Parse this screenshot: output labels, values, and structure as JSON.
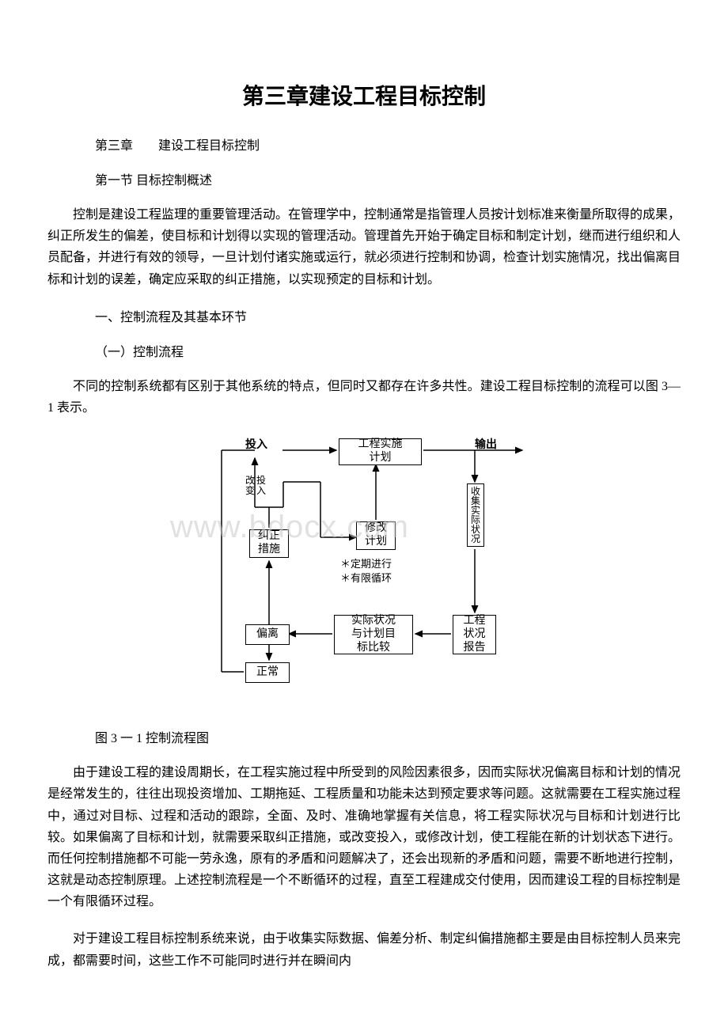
{
  "title": "第三章建设工程目标控制",
  "chapter_line": "第三章　　建设工程目标控制",
  "section_line": "第一节 目标控制概述",
  "para1": "控制是建设工程监理的重要管理活动。在管理学中，控制通常是指管理人员按计划标准来衡量所取得的成果，纠正所发生的偏差，使目标和计划得以实现的管理活动。管理首先开始于确定目标和制定计划，继而进行组织和人员配备，并进行有效的领导，一旦计划付诸实施或运行，就必须进行控制和协调，检查计划实施情况，找出偏离目标和计划的误差，确定应采取的纠正措施，以实现预定的目标和计划。",
  "heading1": "一、控制流程及其基本环节",
  "heading1_1": "（一）控制流程",
  "para2": "不同的控制系统都有区别于其他系统的特点，但同时又都存在许多共性。建设工程目标控制的流程可以图 3—1 表示。",
  "diagram": {
    "watermark": "www.bdocx.com",
    "label_input": "投入",
    "label_output": "输出",
    "box_plan": "工程实施\n计划",
    "box_correct": "纠正\n措施",
    "box_deviation": "偏离",
    "box_normal": "正常",
    "box_compare": "实际状况\n与计划目\n标比较",
    "box_report": "工程\n状况\n报告",
    "vtext_change": "改变投入",
    "vtext_modify": "修改计划",
    "vtext_collect": "收集实际状况",
    "center_note1": "＊定期进行",
    "center_note2": "＊有限循环",
    "line_color": "#000000"
  },
  "fig_caption": "图 3 一 1 控制流程图",
  "para3": "由于建设工程的建设周期长，在工程实施过程中所受到的风险因素很多，因而实际状况偏离目标和计划的情况是经常发生的，往往出现投资增加、工期拖延、工程质量和功能未达到预定要求等问题。这就需要在工程实施过程中，通过对目标、过程和活动的跟踪，全面、及时、准确地掌握有关信息，将工程实际状况与目标和计划进行比较。如果偏离了目标和计划，就需要采取纠正措施，或改变投入，或修改计划，使工程能在新的计划状态下进行。而任何控制措施都不可能一劳永逸，原有的矛盾和问题解决了，还会出现新的矛盾和问题，需要不断地进行控制，这就是动态控制原理。上述控制流程是一个不断循环的过程，直至工程建成交付使用，因而建设工程的目标控制是一个有限循环过程。",
  "para4": "对于建设工程目标控制系统来说，由于收集实际数据、偏差分析、制定纠偏措施都主要是由目标控制人员来完成，都需要时间，这些工作不可能同时进行并在瞬间内"
}
